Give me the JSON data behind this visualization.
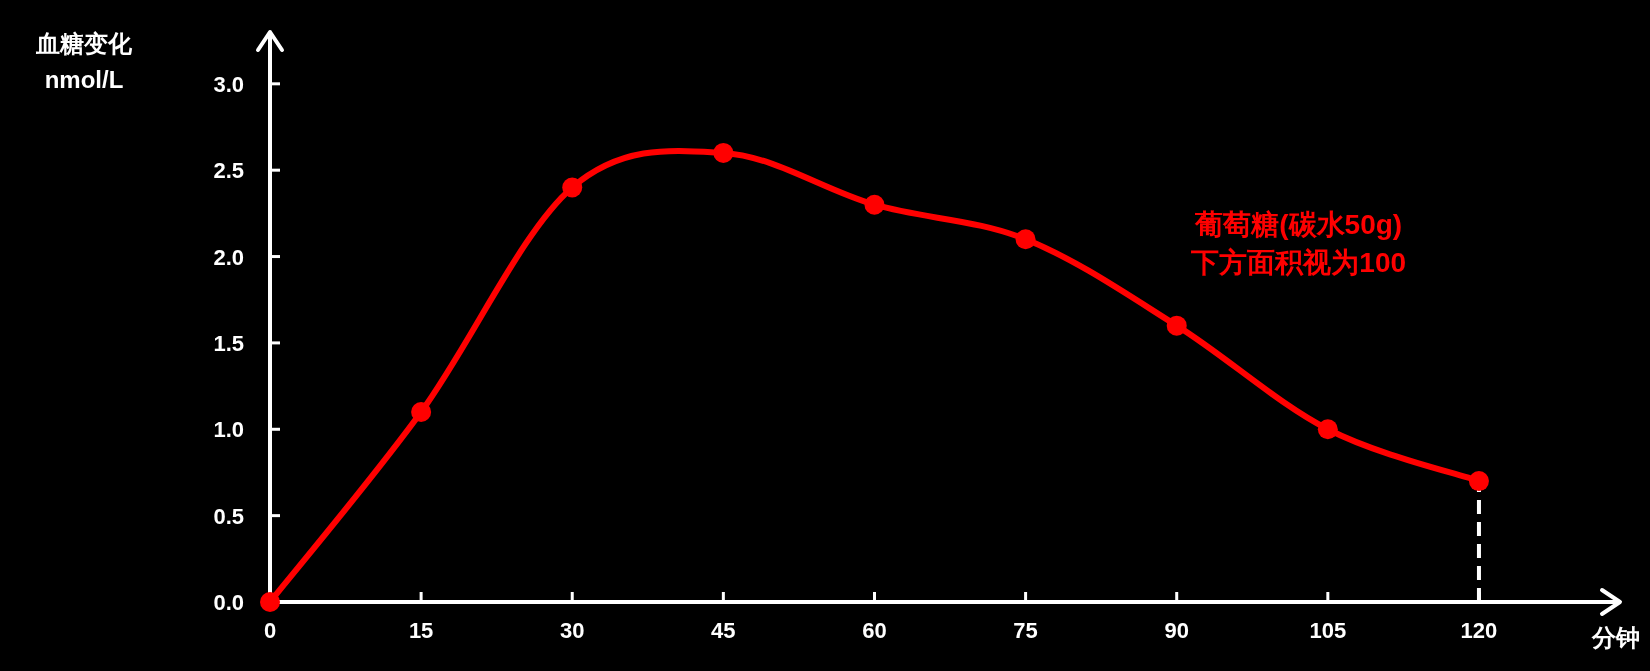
{
  "chart_data": {
    "type": "line",
    "xlabel": "分钟",
    "ylabel": "血糖变化\nnmol/L",
    "x": [
      0,
      15,
      30,
      45,
      60,
      75,
      90,
      105,
      120
    ],
    "series": [
      {
        "color": "#ff0000",
        "values": [
          0,
          1.1,
          2.4,
          2.6,
          2.3,
          2.1,
          1.6,
          1.0,
          0.7
        ]
      }
    ],
    "xlim": [
      0,
      134
    ],
    "ylim": [
      0,
      3.3
    ],
    "xticks": [
      0,
      15,
      30,
      45,
      60,
      75,
      90,
      105,
      120
    ],
    "yticks": [
      {
        "value": 0,
        "label": "0.0"
      },
      {
        "value": 0.5,
        "label": "0.5"
      },
      {
        "value": 1,
        "label": "1.0"
      },
      {
        "value": 1.5,
        "label": "1.5"
      },
      {
        "value": 2,
        "label": "2.0"
      },
      {
        "value": 2.5,
        "label": "2.5"
      },
      {
        "value": 3,
        "label": "3.0"
      }
    ],
    "marker": "circle",
    "line_style": "solid",
    "ref_lines": [
      {
        "axis": "x",
        "value": 120,
        "color": "#ffffff",
        "line_style": "dashed"
      }
    ],
    "annotations": [
      "葡萄糖(碳水50g)\n下方面积视为100"
    ]
  }
}
